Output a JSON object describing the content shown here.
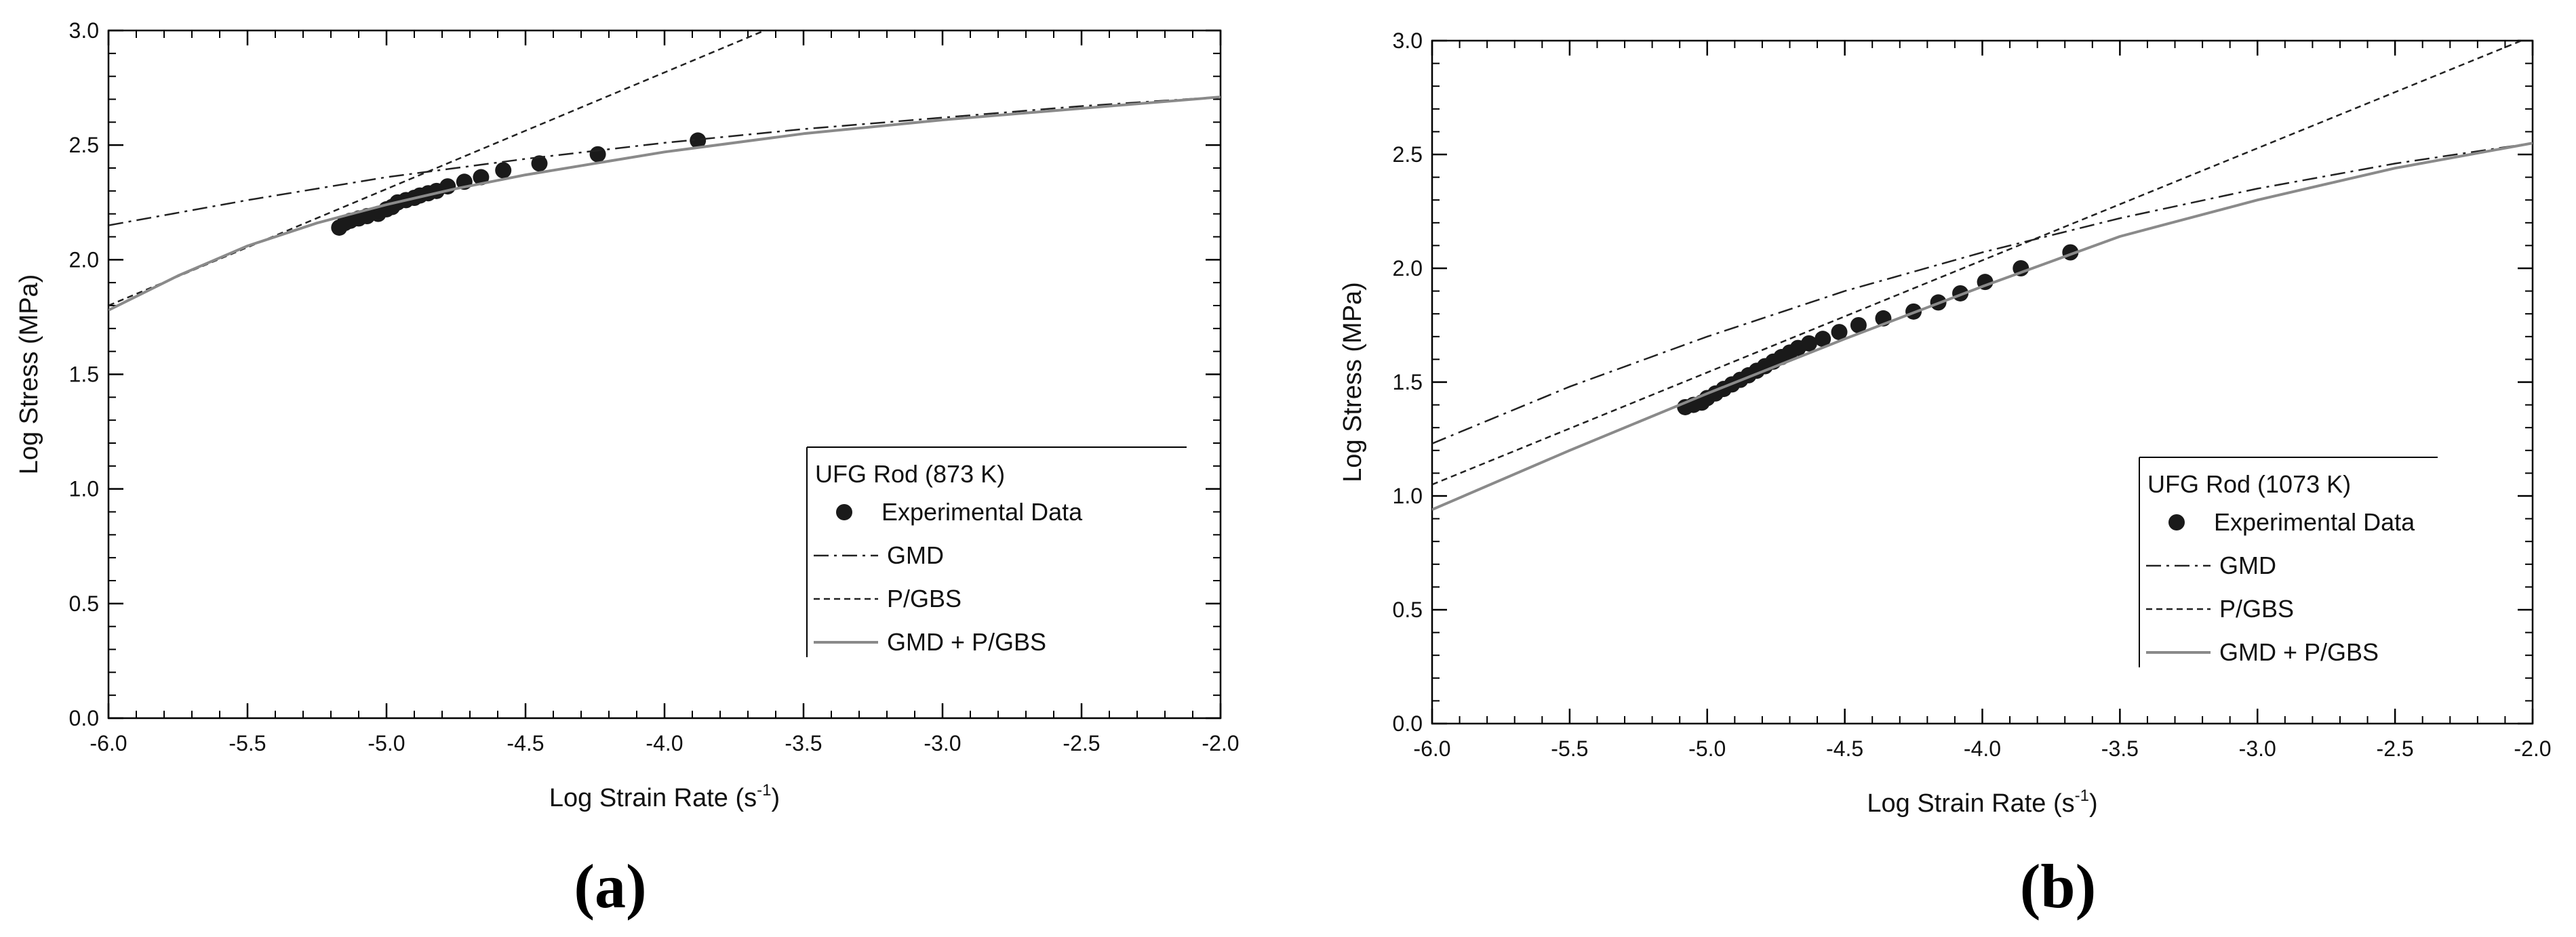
{
  "chart_data": [
    {
      "type": "line",
      "panel_label": "(a)",
      "xlabel": "Log Strain Rate (s",
      "xlabel_sup": "-1",
      "xlabel_close": ")",
      "ylabel": "Log Stress (MPa)",
      "xlim": [
        -6.0,
        -2.0
      ],
      "ylim": [
        0.0,
        3.0
      ],
      "xticks": [
        "-6.0",
        "-5.5",
        "-5.0",
        "-4.5",
        "-4.0",
        "-3.5",
        "-3.0",
        "-2.5",
        "-2.0"
      ],
      "yticks": [
        "0.0",
        "0.5",
        "1.0",
        "1.5",
        "2.0",
        "2.5",
        "3.0"
      ],
      "grid": false,
      "legend_position": "bottom-right",
      "legend_title": "UFG Rod (873 K)",
      "series": [
        {
          "name": "Experimental Data",
          "style": "markers",
          "color": "#1a1a1a",
          "x": [
            -5.17,
            -5.15,
            -5.13,
            -5.1,
            -5.07,
            -5.03,
            -5.0,
            -4.98,
            -4.96,
            -4.93,
            -4.9,
            -4.88,
            -4.85,
            -4.82,
            -4.78,
            -4.72,
            -4.66,
            -4.58,
            -4.45,
            -4.24,
            -3.88
          ],
          "y": [
            2.14,
            2.16,
            2.17,
            2.18,
            2.19,
            2.2,
            2.22,
            2.23,
            2.25,
            2.26,
            2.27,
            2.28,
            2.29,
            2.3,
            2.32,
            2.34,
            2.36,
            2.39,
            2.42,
            2.46,
            2.52
          ]
        },
        {
          "name": "GMD",
          "style": "dash-dot",
          "color": "#222222",
          "x": [
            -6.0,
            -5.5,
            -5.0,
            -4.5,
            -4.0,
            -3.5,
            -3.0,
            -2.5,
            -2.0
          ],
          "y": [
            2.15,
            2.26,
            2.36,
            2.44,
            2.51,
            2.57,
            2.62,
            2.67,
            2.71
          ]
        },
        {
          "name": "P/GBS",
          "style": "dashed",
          "color": "#222222",
          "x": [
            -6.0,
            -3.64
          ],
          "y": [
            1.8,
            3.0
          ]
        },
        {
          "name": "GMD + P/GBS",
          "style": "solid",
          "color": "#8a8a8a",
          "x": [
            -6.0,
            -5.75,
            -5.5,
            -5.25,
            -5.0,
            -4.75,
            -4.5,
            -4.25,
            -4.0,
            -3.5,
            -3.0,
            -2.5,
            -2.0
          ],
          "y": [
            1.78,
            1.93,
            2.06,
            2.16,
            2.24,
            2.31,
            2.37,
            2.42,
            2.47,
            2.55,
            2.61,
            2.66,
            2.71
          ]
        }
      ]
    },
    {
      "type": "line",
      "panel_label": "(b)",
      "xlabel": "Log Strain Rate (s",
      "xlabel_sup": "-1",
      "xlabel_close": ")",
      "ylabel": "Log Stress (MPa)",
      "xlim": [
        -6.0,
        -2.0
      ],
      "ylim": [
        0.0,
        3.0
      ],
      "xticks": [
        "-6.0",
        "-5.5",
        "-5.0",
        "-4.5",
        "-4.0",
        "-3.5",
        "-3.0",
        "-2.5",
        "-2.0"
      ],
      "yticks": [
        "0.0",
        "0.5",
        "1.0",
        "1.5",
        "2.0",
        "2.5",
        "3.0"
      ],
      "grid": false,
      "legend_position": "bottom-right",
      "legend_title": "UFG Rod (1073 K)",
      "series": [
        {
          "name": "Experimental Data",
          "style": "markers",
          "color": "#1a1a1a",
          "x": [
            -5.08,
            -5.05,
            -5.02,
            -5.0,
            -4.97,
            -4.94,
            -4.91,
            -4.88,
            -4.85,
            -4.82,
            -4.79,
            -4.76,
            -4.73,
            -4.7,
            -4.67,
            -4.63,
            -4.58,
            -4.52,
            -4.45,
            -4.36,
            -4.25,
            -4.16,
            -4.08,
            -3.99,
            -3.86,
            -3.68
          ],
          "y": [
            1.39,
            1.4,
            1.41,
            1.43,
            1.45,
            1.47,
            1.49,
            1.51,
            1.53,
            1.55,
            1.57,
            1.59,
            1.61,
            1.63,
            1.65,
            1.67,
            1.69,
            1.72,
            1.75,
            1.78,
            1.81,
            1.85,
            1.89,
            1.94,
            2.0,
            2.07
          ]
        },
        {
          "name": "GMD",
          "style": "dash-dot",
          "color": "#222222",
          "x": [
            -6.0,
            -5.5,
            -5.0,
            -4.5,
            -4.0,
            -3.5,
            -3.0,
            -2.5,
            -2.0
          ],
          "y": [
            1.23,
            1.48,
            1.7,
            1.9,
            2.07,
            2.22,
            2.35,
            2.46,
            2.55
          ]
        },
        {
          "name": "P/GBS",
          "style": "dashed",
          "color": "#222222",
          "x": [
            -6.0,
            -2.0
          ],
          "y": [
            1.05,
            3.02
          ]
        },
        {
          "name": "GMD + P/GBS",
          "style": "solid",
          "color": "#8a8a8a",
          "x": [
            -6.0,
            -5.5,
            -5.0,
            -4.5,
            -4.0,
            -3.5,
            -3.0,
            -2.5,
            -2.0
          ],
          "y": [
            0.94,
            1.2,
            1.45,
            1.69,
            1.92,
            2.14,
            2.3,
            2.44,
            2.55
          ]
        }
      ]
    }
  ]
}
